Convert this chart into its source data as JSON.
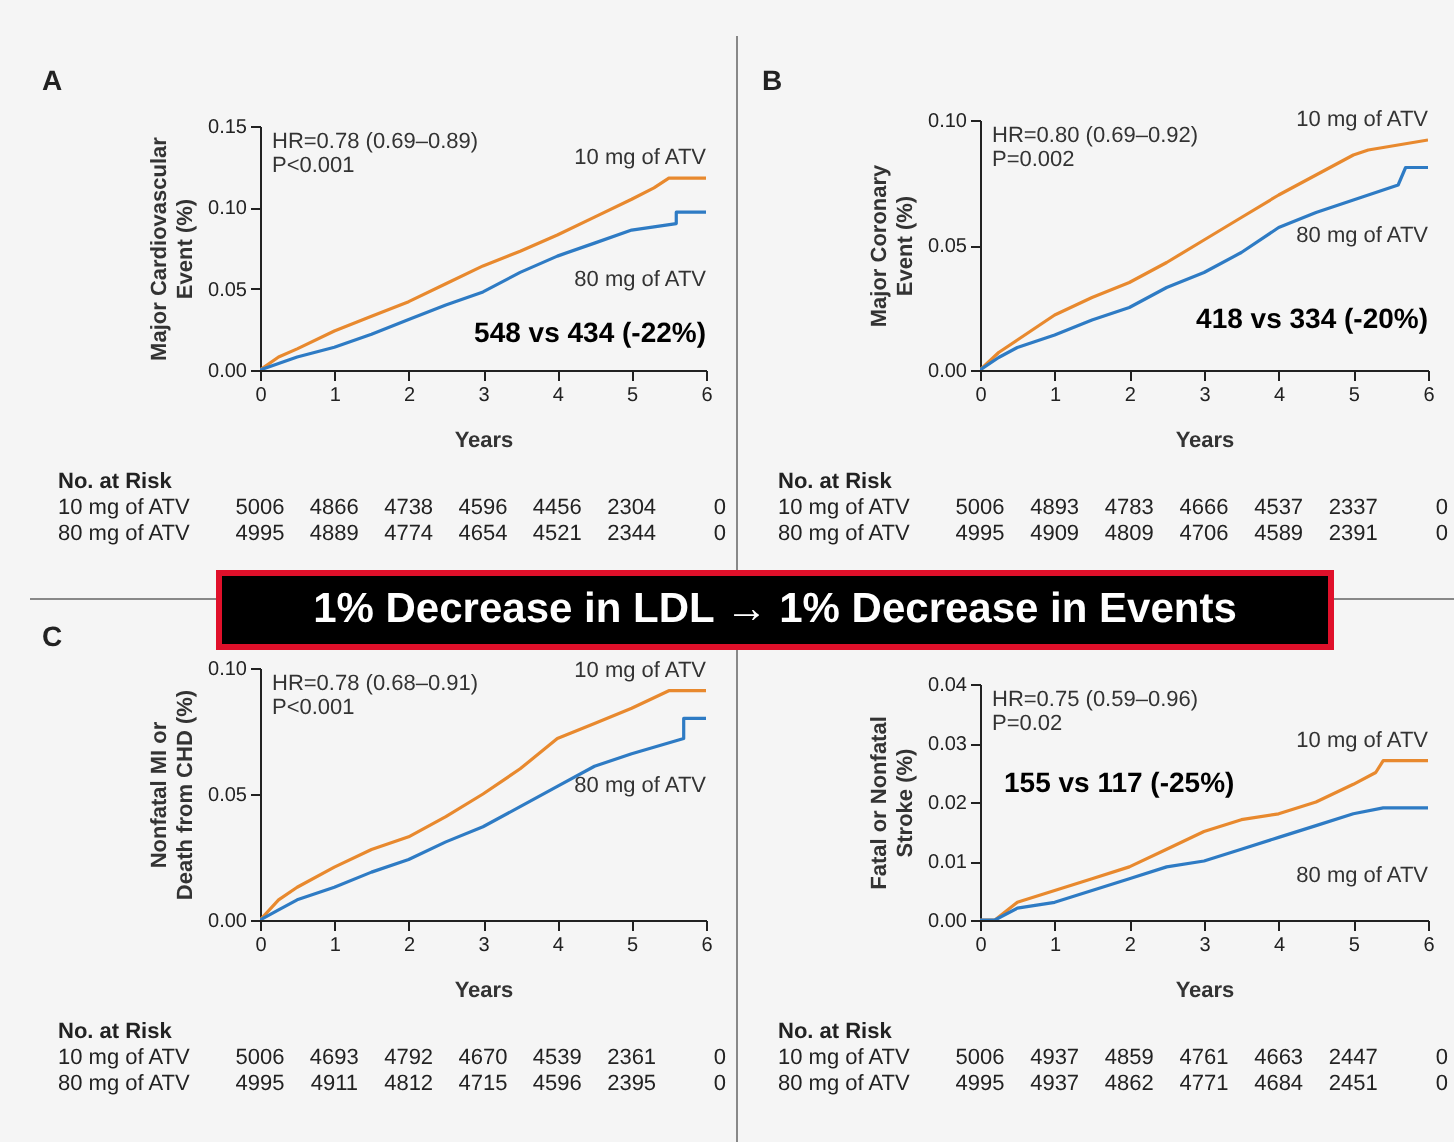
{
  "chart_data": [
    {
      "type": "line",
      "title": "A",
      "xlabel": "Years",
      "ylabel": "Major Cardiovascular Event (%)",
      "xlim": [
        0,
        6
      ],
      "xticks": [
        0,
        1,
        2,
        3,
        4,
        5,
        6
      ],
      "ylim": [
        0,
        0.15
      ],
      "yticks": [
        {
          "value": 0,
          "label": "0.00"
        },
        {
          "value": 0.05,
          "label": "0.05"
        },
        {
          "value": 0.1,
          "label": "0.10"
        },
        {
          "value": 0.15,
          "label": "0.15"
        }
      ],
      "series": [
        {
          "name": "10 mg of ATV",
          "color": "#e8892e",
          "x": [
            0,
            0.25,
            0.5,
            1,
            1.5,
            2,
            2.5,
            3,
            3.5,
            4,
            4.5,
            5,
            5.3,
            5.5,
            6
          ],
          "values": [
            0,
            0.008,
            0.013,
            0.024,
            0.033,
            0.042,
            0.053,
            0.064,
            0.073,
            0.083,
            0.094,
            0.105,
            0.112,
            0.118,
            0.118
          ]
        },
        {
          "name": "80 mg of ATV",
          "color": "#2e7bc4",
          "x": [
            0,
            0.25,
            0.5,
            1,
            1.5,
            2,
            2.5,
            3,
            3.5,
            4,
            4.5,
            5,
            5.6,
            5.6,
            6
          ],
          "values": [
            0,
            0.004,
            0.008,
            0.014,
            0.022,
            0.031,
            0.04,
            0.048,
            0.06,
            0.07,
            0.078,
            0.086,
            0.09,
            0.097,
            0.097
          ]
        }
      ],
      "annotations": [
        "HR=0.78 (0.69–0.89)",
        "P<0.001",
        "548 vs 434 (-22%)",
        "No. at Risk",
        "10 mg of ATV 5006 4866 4738 4596 4456 2304 0",
        "80 mg of ATV 4995 4889 4774 4654 4521 2344 0"
      ]
    },
    {
      "type": "line",
      "title": "B",
      "xlabel": "Years",
      "ylabel": "Major Coronary Event (%)",
      "xlim": [
        0,
        6
      ],
      "xticks": [
        0,
        1,
        2,
        3,
        4,
        5,
        6
      ],
      "ylim": [
        0,
        0.1
      ],
      "yticks": [
        {
          "value": 0,
          "label": "0.00"
        },
        {
          "value": 0.05,
          "label": "0.05"
        },
        {
          "value": 0.1,
          "label": "0.10"
        }
      ],
      "series": [
        {
          "name": "10 mg of ATV",
          "color": "#e8892e",
          "x": [
            0,
            0.25,
            0.5,
            1,
            1.5,
            2,
            2.5,
            3,
            3.5,
            4,
            4.5,
            5,
            5.2,
            6
          ],
          "values": [
            0,
            0.007,
            0.012,
            0.022,
            0.029,
            0.035,
            0.043,
            0.052,
            0.061,
            0.07,
            0.078,
            0.086,
            0.088,
            0.092
          ]
        },
        {
          "name": "80 mg of ATV",
          "color": "#2e7bc4",
          "x": [
            0,
            0.25,
            0.5,
            1,
            1.5,
            2,
            2.5,
            3,
            3.5,
            4,
            4.5,
            5,
            5.6,
            5.7,
            6
          ],
          "values": [
            0,
            0.005,
            0.009,
            0.014,
            0.02,
            0.025,
            0.033,
            0.039,
            0.047,
            0.057,
            0.063,
            0.068,
            0.074,
            0.081,
            0.081
          ]
        }
      ],
      "annotations": [
        "HR=0.80 (0.69–0.92)",
        "P=0.002",
        "418 vs 334 (-20%)",
        "No. at Risk",
        "10 mg of ATV 5006 4893 4783 4666 4537 2337 0",
        "80 mg of ATV 4995 4909 4809 4706 4589 2391 0"
      ]
    },
    {
      "type": "other",
      "title": "1% Decrease in LDL → 1% Decrease in Events"
    },
    {
      "type": "line",
      "title": "C",
      "xlabel": "Years",
      "ylabel": "Nonfatal MI or Death from CHD (%)",
      "xlim": [
        0,
        6
      ],
      "xticks": [
        0,
        1,
        2,
        3,
        4,
        5,
        6
      ],
      "ylim": [
        0,
        0.1
      ],
      "yticks": [
        {
          "value": 0,
          "label": "0.00"
        },
        {
          "value": 0.05,
          "label": "0.05"
        },
        {
          "value": 0.1,
          "label": "0.10"
        }
      ],
      "series": [
        {
          "name": "10 mg of ATV",
          "color": "#e8892e",
          "x": [
            0,
            0.25,
            0.5,
            1,
            1.5,
            2,
            2.5,
            3,
            3.5,
            4,
            4.5,
            5,
            5.5,
            6
          ],
          "values": [
            0,
            0.008,
            0.013,
            0.021,
            0.028,
            0.033,
            0.041,
            0.05,
            0.06,
            0.072,
            0.078,
            0.084,
            0.091,
            0.091
          ]
        },
        {
          "name": "80 mg of ATV",
          "color": "#2e7bc4",
          "x": [
            0,
            0.25,
            0.5,
            1,
            1.5,
            2,
            2.5,
            3,
            3.5,
            4,
            4.5,
            5,
            5.7,
            5.7,
            6
          ],
          "values": [
            0,
            0.004,
            0.008,
            0.013,
            0.019,
            0.024,
            0.031,
            0.037,
            0.045,
            0.053,
            0.061,
            0.066,
            0.072,
            0.08,
            0.08
          ]
        }
      ],
      "annotations": [
        "HR=0.78 (0.68–0.91)",
        "P<0.001",
        "No. at Risk",
        "10 mg of ATV 5006 4693 4792 4670 4539 2361 0",
        "80 mg of ATV 4995 4911 4812 4715 4596 2395 0"
      ]
    },
    {
      "type": "line",
      "xlabel": "Years",
      "ylabel": "Fatal or Nonfatal Stroke (%)",
      "xlim": [
        0,
        6
      ],
      "xticks": [
        0,
        1,
        2,
        3,
        4,
        5,
        6
      ],
      "ylim": [
        0,
        0.04
      ],
      "yticks": [
        {
          "value": 0,
          "label": "0.00"
        },
        {
          "value": 0.01,
          "label": "0.01"
        },
        {
          "value": 0.02,
          "label": "0.02"
        },
        {
          "value": 0.03,
          "label": "0.03"
        },
        {
          "value": 0.04,
          "label": "0.04"
        }
      ],
      "series": [
        {
          "name": "10 mg of ATV",
          "color": "#e8892e",
          "x": [
            0,
            0.2,
            0.5,
            1,
            1.5,
            2,
            2.5,
            3,
            3.5,
            4,
            4.5,
            5,
            5.3,
            5.4,
            6
          ],
          "values": [
            0,
            0,
            0.003,
            0.005,
            0.007,
            0.009,
            0.012,
            0.015,
            0.017,
            0.018,
            0.02,
            0.023,
            0.025,
            0.027,
            0.027
          ]
        },
        {
          "name": "80 mg of ATV",
          "color": "#2e7bc4",
          "x": [
            0,
            0.2,
            0.5,
            1,
            1.5,
            2,
            2.5,
            3,
            3.5,
            4,
            4.5,
            5,
            5.4,
            6
          ],
          "values": [
            0,
            0,
            0.002,
            0.003,
            0.005,
            0.007,
            0.009,
            0.01,
            0.012,
            0.014,
            0.016,
            0.018,
            0.019,
            0.019
          ]
        }
      ],
      "annotations": [
        "HR=0.75 (0.59–0.96)",
        "P=0.02",
        "155 vs 117 (-25%)",
        "No. at Risk",
        "10 mg of ATV 5006 4937 4859 4761 4663 2447 0",
        "80 mg of ATV 4995 4937 4862 4771 4684 2451 0"
      ]
    }
  ]
}
